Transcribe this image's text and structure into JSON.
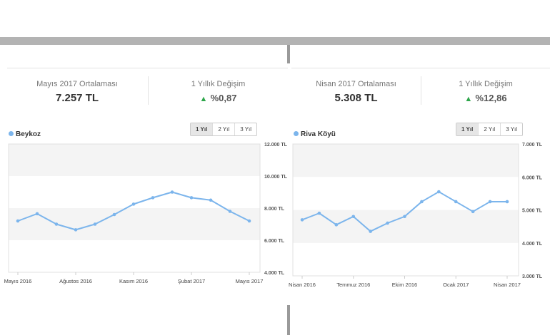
{
  "panels": [
    {
      "stat_avg": {
        "label": "Mayıs 2017 Ortalaması",
        "value": "7.257 TL"
      },
      "stat_change": {
        "label": "1 Yıllık Değişim",
        "arrow": "▲",
        "value": "%0,87"
      },
      "range_buttons": [
        "1 Yıl",
        "2 Yıl",
        "3 Yıl"
      ],
      "active_range": "1 Yıl"
    },
    {
      "stat_avg": {
        "label": "Nisan 2017 Ortalaması",
        "value": "5.308 TL"
      },
      "stat_change": {
        "label": "1 Yıllık Değişim",
        "arrow": "▲",
        "value": "%12,86"
      },
      "range_buttons": [
        "1 Yıl",
        "2 Yıl",
        "3 Yıl"
      ],
      "active_range": "1 Yıl"
    }
  ],
  "chart_data": [
    {
      "type": "line",
      "series": [
        {
          "name": "Beykoz",
          "color": "#7cb5ec",
          "x": [
            "2016-05",
            "2016-06",
            "2016-07",
            "2016-08",
            "2016-09",
            "2016-10",
            "2016-11",
            "2016-12",
            "2017-01",
            "2017-02",
            "2017-03",
            "2017-04",
            "2017-05"
          ],
          "values": [
            7200,
            7650,
            7000,
            6650,
            7000,
            7600,
            8250,
            8650,
            9000,
            8650,
            8500,
            7800,
            7200
          ]
        }
      ],
      "ylim": [
        4000,
        12000
      ],
      "yticks": [
        4000,
        6000,
        8000,
        10000,
        12000
      ],
      "ytick_labels": [
        "4.000 TL",
        "6.000 TL",
        "8.000 TL",
        "10.000 TL",
        "12.000 TL"
      ],
      "xtick_labels": [
        {
          "x": "2016-05",
          "label": "Mayıs 2016"
        },
        {
          "x": "2016-08",
          "label": "Ağustos 2016"
        },
        {
          "x": "2016-11",
          "label": "Kasım 2016"
        },
        {
          "x": "2017-02",
          "label": "Şubat 2017"
        },
        {
          "x": "2017-05",
          "label": "Mayıs 2017"
        }
      ],
      "grid": "alternating-bands",
      "legend": "top-left"
    },
    {
      "type": "line",
      "series": [
        {
          "name": "Riva Köyü",
          "color": "#7cb5ec",
          "x": [
            "2016-04",
            "2016-05",
            "2016-06",
            "2016-07",
            "2016-08",
            "2016-09",
            "2016-10",
            "2016-11",
            "2016-12",
            "2017-01",
            "2017-02",
            "2017-03",
            "2017-04"
          ],
          "values": [
            4700,
            4900,
            4550,
            4800,
            4350,
            4600,
            4800,
            5250,
            5550,
            5250,
            4950,
            5250,
            5250
          ]
        }
      ],
      "ylim": [
        3000,
        7000
      ],
      "yticks": [
        3000,
        4000,
        5000,
        6000,
        7000
      ],
      "ytick_labels": [
        "3.000 TL",
        "4.000 TL",
        "5.000 TL",
        "6.000 TL",
        "7.000 TL"
      ],
      "xtick_labels": [
        {
          "x": "2016-04",
          "label": "Nisan 2016"
        },
        {
          "x": "2016-07",
          "label": "Temmuz 2016"
        },
        {
          "x": "2016-10",
          "label": "Ekim 2016"
        },
        {
          "x": "2017-01",
          "label": "Ocak 2017"
        },
        {
          "x": "2017-04",
          "label": "Nisan 2017"
        }
      ],
      "grid": "alternating-bands",
      "legend": "top-left"
    }
  ]
}
